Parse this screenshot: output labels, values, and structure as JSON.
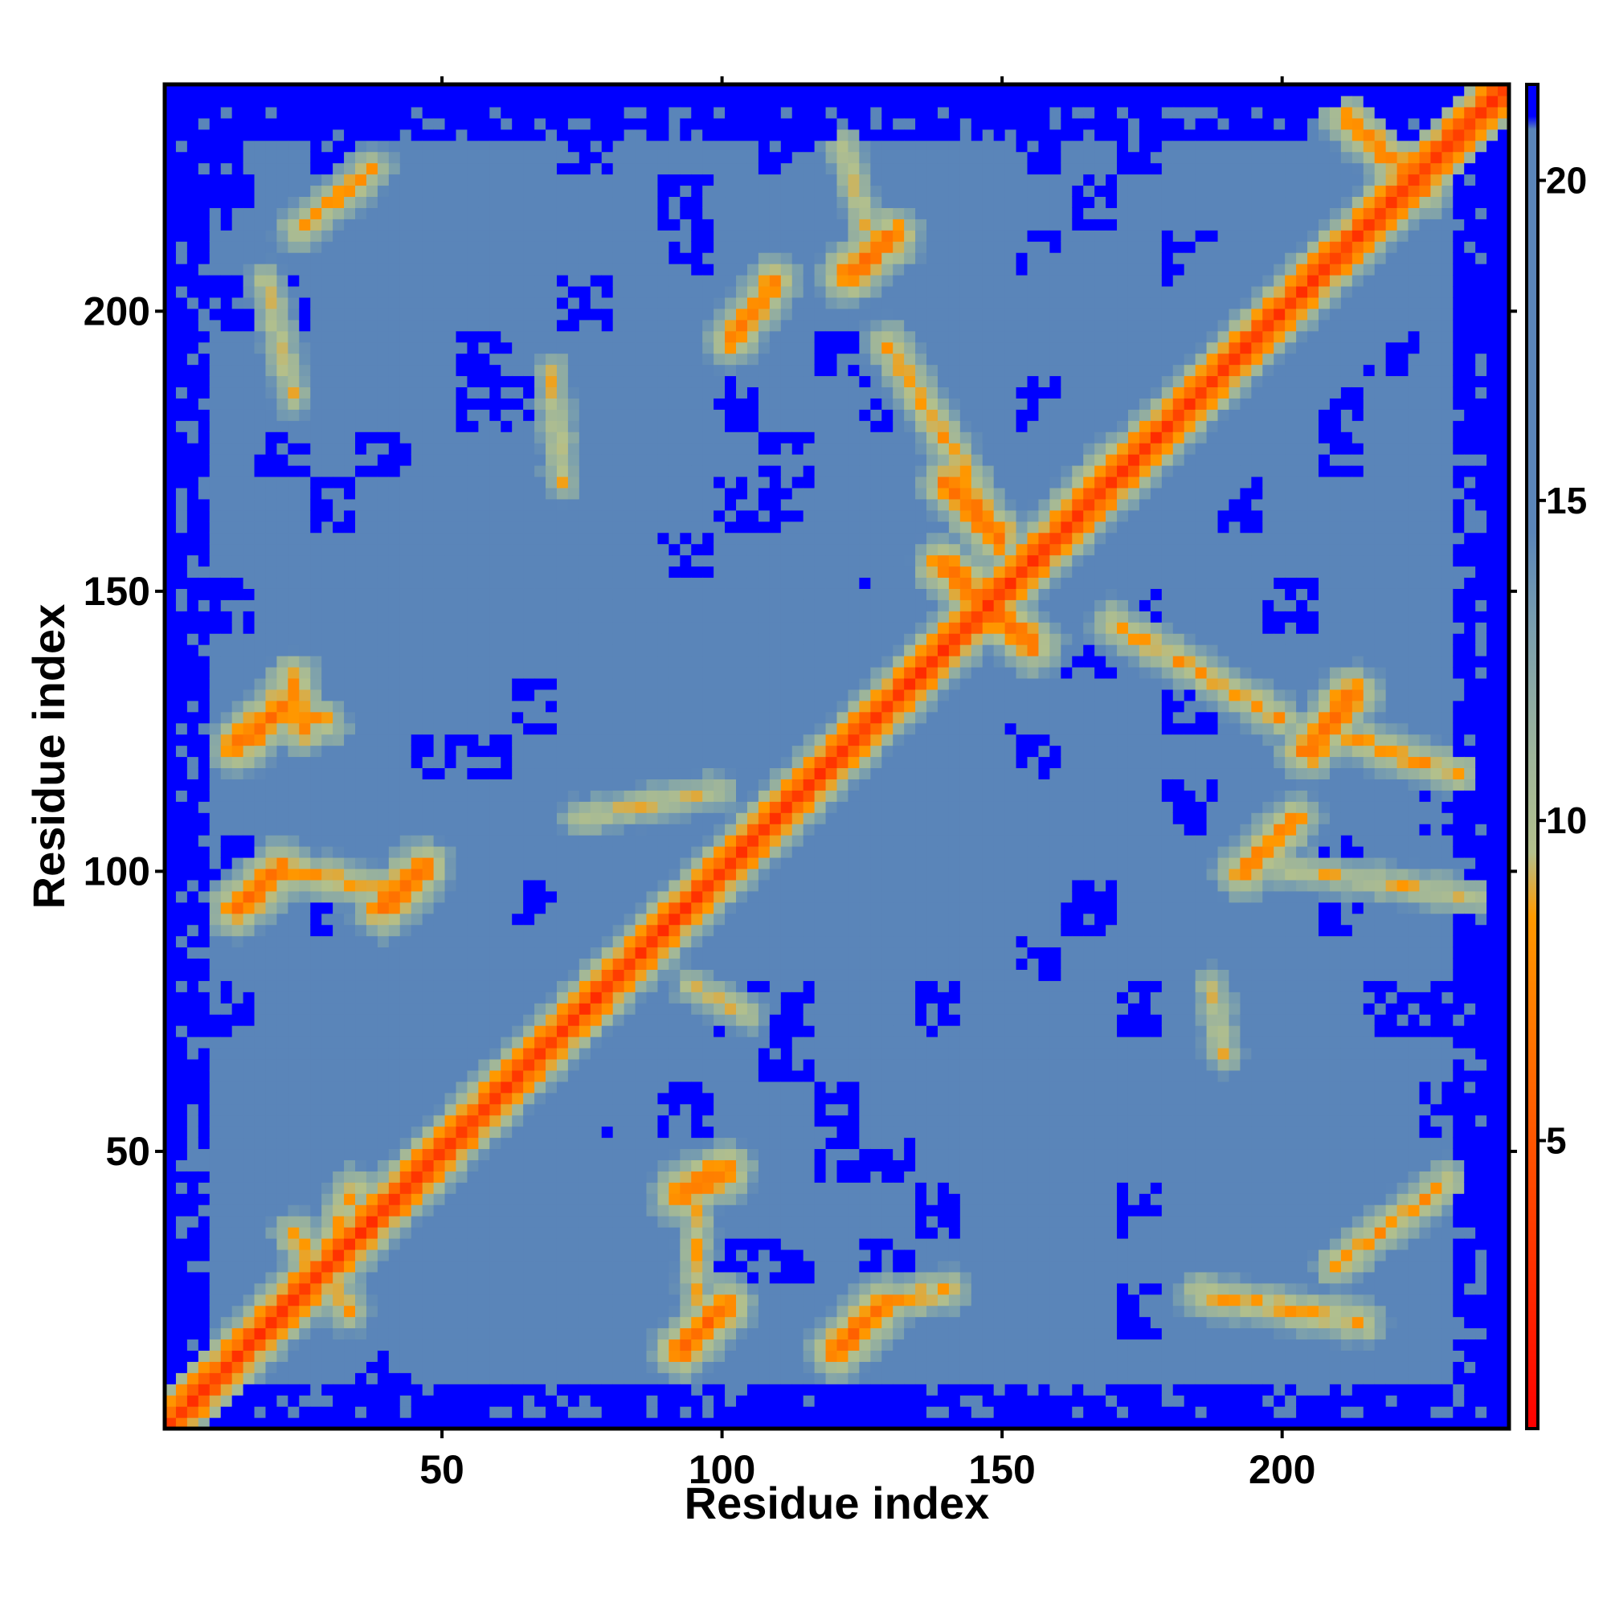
{
  "chart_data": {
    "type": "heatmap",
    "title": "",
    "xlabel": "Residue index",
    "ylabel": "Residue index",
    "xlim": [
      1,
      240
    ],
    "ylim": [
      1,
      240
    ],
    "x_ticks": [
      50,
      100,
      150,
      200
    ],
    "y_ticks": [
      50,
      100,
      150,
      200
    ],
    "grid": false,
    "colorbar": {
      "range": [
        0.5,
        21.5
      ],
      "ticks": [
        5,
        10,
        15,
        20
      ],
      "placement": "right",
      "stops": [
        {
          "value": 0.5,
          "color": "#ff0000"
        },
        {
          "value": 5.0,
          "color": "#ff5500"
        },
        {
          "value": 8.5,
          "color": "#ff9900"
        },
        {
          "value": 9.5,
          "color": "#b3c08c"
        },
        {
          "value": 11.0,
          "color": "#9eb59a"
        },
        {
          "value": 13.0,
          "color": "#7a9fae"
        },
        {
          "value": 14.5,
          "color": "#5a85b9"
        },
        {
          "value": 20.8,
          "color": "#5a85b9"
        },
        {
          "value": 21.0,
          "color": "#0000ff"
        }
      ]
    },
    "map_sampling": {
      "bin": 2,
      "n_residues": 240
    },
    "contact_segments": [
      {
        "from": [
          14,
          123
        ],
        "to": [
          22,
          130
        ],
        "value": 6
      },
      {
        "from": [
          14,
          94
        ],
        "to": [
          22,
          101
        ],
        "value": 6
      },
      {
        "from": [
          40,
          94
        ],
        "to": [
          47,
          101
        ],
        "value": 6
      },
      {
        "from": [
          24,
          135
        ],
        "to": [
          26,
          126
        ],
        "value": 7
      },
      {
        "from": [
          22,
          130
        ],
        "to": [
          30,
          127
        ],
        "value": 8
      },
      {
        "from": [
          22,
          101
        ],
        "to": [
          40,
          97
        ],
        "value": 8
      },
      {
        "from": [
          19,
          206
        ],
        "to": [
          24,
          185
        ],
        "value": 9
      },
      {
        "from": [
          25,
          215
        ],
        "to": [
          38,
          226
        ],
        "value": 8
      },
      {
        "from": [
          24,
          36
        ],
        "to": [
          34,
          22
        ],
        "value": 8
      },
      {
        "from": [
          27,
          27
        ],
        "to": [
          35,
          44
        ],
        "value": 8
      },
      {
        "from": [
          93,
          15
        ],
        "to": [
          101,
          23
        ],
        "value": 6
      },
      {
        "from": [
          93,
          43
        ],
        "to": [
          101,
          47
        ],
        "value": 6
      },
      {
        "from": [
          96,
          23
        ],
        "to": [
          96,
          43
        ],
        "value": 9
      },
      {
        "from": [
          121,
          15
        ],
        "to": [
          129,
          23
        ],
        "value": 6
      },
      {
        "from": [
          129,
          23
        ],
        "to": [
          141,
          26
        ],
        "value": 8
      },
      {
        "from": [
          123,
          207
        ],
        "to": [
          131,
          214
        ],
        "value": 6
      },
      {
        "from": [
          122,
          230
        ],
        "to": [
          128,
          210
        ],
        "value": 9
      },
      {
        "from": [
          102,
          195
        ],
        "to": [
          110,
          206
        ],
        "value": 7
      },
      {
        "from": [
          70,
          190
        ],
        "to": [
          72,
          170
        ],
        "value": 9
      },
      {
        "from": [
          75,
          110
        ],
        "to": [
          100,
          115
        ],
        "value": 9
      },
      {
        "from": [
          95,
          80
        ],
        "to": [
          105,
          75
        ],
        "value": 9
      },
      {
        "from": [
          141,
          170
        ],
        "to": [
          150,
          160
        ],
        "value": 6
      },
      {
        "from": [
          140,
          155
        ],
        "to": [
          156,
          141
        ],
        "value": 6
      },
      {
        "from": [
          159,
          160
        ],
        "to": [
          171,
          173
        ],
        "value": 6
      },
      {
        "from": [
          130,
          195
        ],
        "to": [
          145,
          170
        ],
        "value": 8
      },
      {
        "from": [
          170,
          145
        ],
        "to": [
          200,
          128
        ],
        "value": 8
      },
      {
        "from": [
          205,
          122
        ],
        "to": [
          213,
          132
        ],
        "value": 6
      },
      {
        "from": [
          210,
          125
        ],
        "to": [
          232,
          118
        ],
        "value": 8
      },
      {
        "from": [
          193,
          100
        ],
        "to": [
          203,
          110
        ],
        "value": 7
      },
      {
        "from": [
          195,
          102
        ],
        "to": [
          235,
          96
        ],
        "value": 9
      },
      {
        "from": [
          186,
          25
        ],
        "to": [
          215,
          20
        ],
        "value": 8
      },
      {
        "from": [
          210,
          30
        ],
        "to": [
          230,
          45
        ],
        "value": 8
      },
      {
        "from": [
          212,
          235
        ],
        "to": [
          226,
          222
        ],
        "value": 7
      },
      {
        "from": [
          188,
          80
        ],
        "to": [
          190,
          68
        ],
        "value": 9
      }
    ]
  }
}
